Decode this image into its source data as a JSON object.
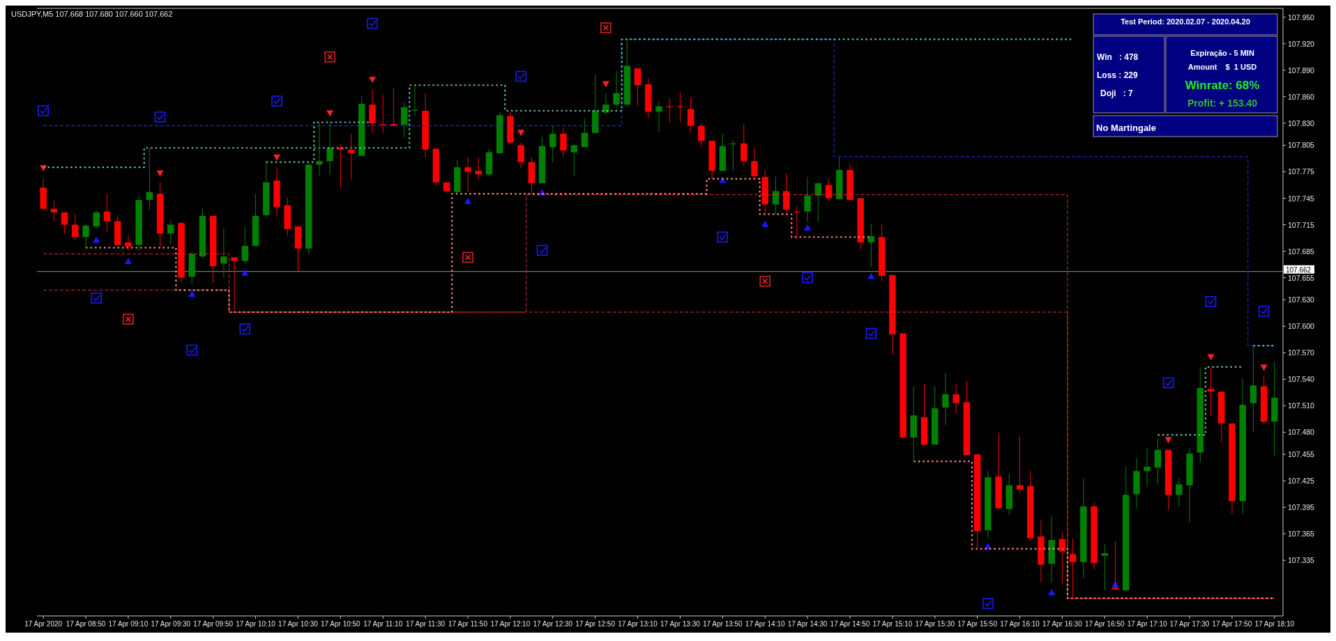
{
  "chart_data": {
    "type": "candlestick",
    "title": "USDJPY,M5  107.668 107.680 107.660 107.662",
    "x": [
      "2020-04-17T08:30",
      "2020-04-17T08:35",
      "2020-04-17T08:40",
      "2020-04-17T08:45",
      "2020-04-17T08:50",
      "2020-04-17T08:55",
      "2020-04-17T09:00",
      "2020-04-17T09:05",
      "2020-04-17T09:10",
      "2020-04-17T09:15",
      "2020-04-17T09:20",
      "2020-04-17T09:25",
      "2020-04-17T09:30",
      "2020-04-17T09:35",
      "2020-04-17T09:40",
      "2020-04-17T09:45",
      "2020-04-17T09:50",
      "2020-04-17T09:55",
      "2020-04-17T10:00",
      "2020-04-17T10:05",
      "2020-04-17T10:10",
      "2020-04-17T10:15",
      "2020-04-17T10:20",
      "2020-04-17T10:25",
      "2020-04-17T10:30",
      "2020-04-17T10:35",
      "2020-04-17T10:40",
      "2020-04-17T10:45",
      "2020-04-17T10:50",
      "2020-04-17T10:55",
      "2020-04-17T11:00",
      "2020-04-17T11:05",
      "2020-04-17T11:10",
      "2020-04-17T11:15",
      "2020-04-17T11:20",
      "2020-04-17T11:25",
      "2020-04-17T11:30",
      "2020-04-17T11:35",
      "2020-04-17T11:40",
      "2020-04-17T11:45",
      "2020-04-17T11:50",
      "2020-04-17T11:55",
      "2020-04-17T12:00",
      "2020-04-17T12:05",
      "2020-04-17T12:10",
      "2020-04-17T12:15",
      "2020-04-17T12:20",
      "2020-04-17T12:25",
      "2020-04-17T12:30",
      "2020-04-17T12:35",
      "2020-04-17T12:40",
      "2020-04-17T12:45",
      "2020-04-17T12:50",
      "2020-04-17T12:55",
      "2020-04-17T13:00",
      "2020-04-17T13:05",
      "2020-04-17T13:10",
      "2020-04-17T13:15",
      "2020-04-17T13:20",
      "2020-04-17T13:25",
      "2020-04-17T13:30",
      "2020-04-17T13:35",
      "2020-04-17T13:40",
      "2020-04-17T13:45",
      "2020-04-17T13:50",
      "2020-04-17T13:55",
      "2020-04-17T14:00",
      "2020-04-17T14:05",
      "2020-04-17T14:10",
      "2020-04-17T14:15",
      "2020-04-17T14:20",
      "2020-04-17T14:25",
      "2020-04-17T14:30",
      "2020-04-17T14:35",
      "2020-04-17T14:40",
      "2020-04-17T14:45",
      "2020-04-17T14:50",
      "2020-04-17T14:55",
      "2020-04-17T15:00",
      "2020-04-17T15:05",
      "2020-04-17T15:10",
      "2020-04-17T15:15",
      "2020-04-17T15:20",
      "2020-04-17T15:25",
      "2020-04-17T15:30",
      "2020-04-17T15:35",
      "2020-04-17T15:40",
      "2020-04-17T15:45",
      "2020-04-17T15:50",
      "2020-04-17T15:55",
      "2020-04-17T16:00",
      "2020-04-17T16:05",
      "2020-04-17T16:10",
      "2020-04-17T16:15",
      "2020-04-17T16:20",
      "2020-04-17T16:25",
      "2020-04-17T16:30",
      "2020-04-17T16:35",
      "2020-04-17T16:40",
      "2020-04-17T16:45",
      "2020-04-17T16:50",
      "2020-04-17T16:55",
      "2020-04-17T17:00",
      "2020-04-17T17:05",
      "2020-04-17T17:10",
      "2020-04-17T17:15",
      "2020-04-17T17:20",
      "2020-04-17T17:25",
      "2020-04-17T17:30",
      "2020-04-17T17:35",
      "2020-04-17T17:40",
      "2020-04-17T17:45",
      "2020-04-17T17:50",
      "2020-04-17T17:55",
      "2020-04-17T18:00",
      "2020-04-17T18:05",
      "2020-04-17T18:10"
    ],
    "ohlc": [
      [
        107.757,
        107.768,
        107.732,
        107.733
      ],
      [
        107.733,
        107.742,
        107.719,
        107.729
      ],
      [
        107.729,
        107.729,
        107.705,
        107.715
      ],
      [
        107.715,
        107.727,
        107.698,
        107.701
      ],
      [
        107.701,
        107.716,
        107.689,
        107.714
      ],
      [
        107.713,
        107.731,
        107.711,
        107.729
      ],
      [
        107.73,
        107.75,
        107.707,
        107.719
      ],
      [
        107.719,
        107.726,
        107.691,
        107.692
      ],
      [
        107.695,
        107.703,
        107.686,
        107.69
      ],
      [
        107.692,
        107.749,
        107.685,
        107.743
      ],
      [
        107.743,
        107.802,
        107.732,
        107.752
      ],
      [
        107.75,
        107.763,
        107.689,
        107.705
      ],
      [
        107.705,
        107.72,
        107.693,
        107.715
      ],
      [
        107.717,
        107.718,
        107.65,
        107.655
      ],
      [
        107.656,
        107.684,
        107.648,
        107.682
      ],
      [
        107.679,
        107.733,
        107.677,
        107.725
      ],
      [
        107.725,
        107.725,
        107.649,
        107.668
      ],
      [
        107.671,
        107.711,
        107.655,
        107.679
      ],
      [
        107.678,
        107.678,
        107.616,
        107.674
      ],
      [
        107.674,
        107.713,
        107.671,
        107.691
      ],
      [
        107.691,
        107.75,
        107.691,
        107.725
      ],
      [
        107.726,
        107.787,
        107.724,
        107.763
      ],
      [
        107.765,
        107.78,
        107.725,
        107.735
      ],
      [
        107.737,
        107.746,
        107.702,
        107.71
      ],
      [
        107.713,
        107.713,
        107.661,
        107.688
      ],
      [
        107.688,
        107.786,
        107.682,
        107.783
      ],
      [
        107.783,
        107.831,
        107.77,
        107.787
      ],
      [
        107.787,
        107.831,
        107.772,
        107.802
      ],
      [
        107.802,
        107.806,
        107.757,
        107.8
      ],
      [
        107.8,
        107.818,
        107.766,
        107.796
      ],
      [
        107.793,
        107.861,
        107.793,
        107.852
      ],
      [
        107.851,
        107.868,
        107.819,
        107.83
      ],
      [
        107.829,
        107.862,
        107.819,
        107.828
      ],
      [
        107.829,
        107.87,
        107.827,
        107.827
      ],
      [
        107.828,
        107.854,
        107.814,
        107.848
      ],
      [
        107.844,
        107.872,
        107.838,
        107.845
      ],
      [
        107.844,
        107.864,
        107.791,
        107.8
      ],
      [
        107.801,
        107.801,
        107.759,
        107.763
      ],
      [
        107.763,
        107.763,
        107.751,
        107.753
      ],
      [
        107.752,
        107.788,
        107.75,
        107.78
      ],
      [
        107.78,
        107.791,
        107.752,
        107.775
      ],
      [
        107.776,
        107.791,
        107.766,
        107.772
      ],
      [
        107.772,
        107.801,
        107.77,
        107.797
      ],
      [
        107.796,
        107.843,
        107.796,
        107.839
      ],
      [
        107.838,
        107.843,
        107.808,
        107.808
      ],
      [
        107.805,
        107.808,
        107.779,
        107.786
      ],
      [
        107.786,
        107.791,
        107.75,
        107.762
      ],
      [
        107.762,
        107.814,
        107.762,
        107.804
      ],
      [
        107.803,
        107.827,
        107.786,
        107.818
      ],
      [
        107.818,
        107.825,
        107.792,
        107.799
      ],
      [
        107.797,
        107.806,
        107.77,
        107.805
      ],
      [
        107.803,
        107.835,
        107.803,
        107.819
      ],
      [
        107.819,
        107.885,
        107.819,
        107.844
      ],
      [
        107.842,
        107.864,
        107.839,
        107.851
      ],
      [
        107.851,
        107.889,
        107.849,
        107.864
      ],
      [
        107.851,
        107.924,
        107.849,
        107.895
      ],
      [
        107.892,
        107.892,
        107.85,
        107.873
      ],
      [
        107.874,
        107.881,
        107.836,
        107.843
      ],
      [
        107.843,
        107.855,
        107.82,
        107.849
      ],
      [
        107.849,
        107.858,
        107.831,
        107.848
      ],
      [
        107.849,
        107.865,
        107.832,
        107.848
      ],
      [
        107.846,
        107.859,
        107.82,
        107.827
      ],
      [
        107.827,
        107.83,
        107.804,
        107.81
      ],
      [
        107.81,
        107.81,
        107.767,
        107.776
      ],
      [
        107.776,
        107.818,
        107.776,
        107.804
      ],
      [
        107.806,
        107.811,
        107.776,
        107.807
      ],
      [
        107.807,
        107.829,
        107.782,
        107.787
      ],
      [
        107.787,
        107.802,
        107.767,
        107.77
      ],
      [
        107.769,
        107.777,
        107.726,
        107.738
      ],
      [
        107.738,
        107.77,
        107.727,
        107.753
      ],
      [
        107.753,
        107.773,
        107.726,
        107.732
      ],
      [
        107.73,
        107.736,
        107.7,
        107.729
      ],
      [
        107.73,
        107.769,
        107.718,
        107.748
      ],
      [
        107.748,
        107.762,
        107.718,
        107.762
      ],
      [
        107.76,
        107.767,
        107.742,
        107.745
      ],
      [
        107.744,
        107.792,
        107.744,
        107.777
      ],
      [
        107.777,
        107.783,
        107.741,
        107.743
      ],
      [
        107.745,
        107.745,
        107.687,
        107.695
      ],
      [
        107.695,
        107.716,
        107.667,
        107.702
      ],
      [
        107.701,
        107.715,
        107.651,
        107.657
      ],
      [
        107.658,
        107.658,
        107.568,
        107.591
      ],
      [
        107.592,
        107.592,
        107.473,
        107.474
      ],
      [
        107.474,
        107.532,
        107.446,
        107.499
      ],
      [
        107.497,
        107.535,
        107.465,
        107.466
      ],
      [
        107.466,
        107.532,
        107.466,
        107.507
      ],
      [
        107.508,
        107.547,
        107.488,
        107.523
      ],
      [
        107.523,
        107.534,
        107.501,
        107.513
      ],
      [
        107.514,
        107.538,
        107.454,
        107.454
      ],
      [
        107.455,
        107.455,
        107.347,
        107.368
      ],
      [
        107.369,
        107.436,
        107.36,
        107.429
      ],
      [
        107.43,
        107.479,
        107.393,
        107.394
      ],
      [
        107.393,
        107.433,
        107.387,
        107.42
      ],
      [
        107.42,
        107.475,
        107.411,
        107.415
      ],
      [
        107.419,
        107.436,
        107.358,
        107.36
      ],
      [
        107.362,
        107.38,
        107.31,
        107.33
      ],
      [
        107.331,
        107.385,
        107.31,
        107.358
      ],
      [
        107.359,
        107.366,
        107.308,
        107.345
      ],
      [
        107.342,
        107.36,
        107.292,
        107.333
      ],
      [
        107.333,
        107.428,
        107.315,
        107.396
      ],
      [
        107.396,
        107.4,
        107.325,
        107.332
      ],
      [
        107.34,
        107.353,
        107.301,
        107.343
      ],
      [
        107.304,
        107.356,
        107.301,
        107.302
      ],
      [
        107.301,
        107.442,
        107.301,
        107.409
      ],
      [
        107.41,
        107.451,
        107.394,
        107.436
      ],
      [
        107.436,
        107.462,
        107.419,
        107.441
      ],
      [
        107.44,
        107.473,
        107.421,
        107.46
      ],
      [
        107.46,
        107.46,
        107.392,
        107.409
      ],
      [
        107.409,
        107.428,
        107.396,
        107.421
      ],
      [
        107.42,
        107.462,
        107.378,
        107.456
      ],
      [
        107.457,
        107.553,
        107.446,
        107.53
      ],
      [
        107.529,
        107.553,
        107.498,
        107.526
      ],
      [
        107.526,
        107.526,
        107.469,
        107.49
      ],
      [
        107.49,
        107.49,
        107.388,
        107.402
      ],
      [
        107.402,
        107.541,
        107.388,
        107.511
      ],
      [
        107.513,
        107.578,
        107.48,
        107.533
      ],
      [
        107.532,
        107.544,
        107.489,
        107.492
      ],
      [
        107.492,
        107.56,
        107.453,
        107.519
      ]
    ],
    "colors": [
      "#ff0000",
      "#ff0000",
      "#ff0000",
      "#ff0000",
      "#008000",
      "#008000",
      "#ff0000",
      "#ff0000",
      "#ff0000",
      "#008000",
      "#008000",
      "#ff0000",
      "#008000",
      "#ff0000",
      "#008000",
      "#008000",
      "#ff0000",
      "#008000",
      "#ff0000",
      "#008000",
      "#008000",
      "#008000",
      "#ff0000",
      "#ff0000",
      "#ff0000",
      "#008000",
      "#008000",
      "#008000",
      "#ff0000",
      "#ff0000",
      "#008000",
      "#ff0000",
      "#ff0000",
      "#ff0000",
      "#008000",
      "#008000",
      "#ff0000",
      "#ff0000",
      "#ff0000",
      "#008000",
      "#ff0000",
      "#ff0000",
      "#008000",
      "#008000",
      "#ff0000",
      "#ff0000",
      "#ff0000",
      "#008000",
      "#008000",
      "#ff0000",
      "#008000",
      "#008000",
      "#008000",
      "#008000",
      "#008000",
      "#008000",
      "#ff0000",
      "#ff0000",
      "#008000",
      "#ff0000",
      "#ff0000",
      "#ff0000",
      "#ff0000",
      "#ff0000",
      "#008000",
      "#008000",
      "#ff0000",
      "#ff0000",
      "#ff0000",
      "#008000",
      "#ff0000",
      "#ff0000",
      "#008000",
      "#008000",
      "#ff0000",
      "#008000",
      "#ff0000",
      "#ff0000",
      "#008000",
      "#ff0000",
      "#ff0000",
      "#ff0000",
      "#008000",
      "#ff0000",
      "#008000",
      "#008000",
      "#ff0000",
      "#ff0000",
      "#ff0000",
      "#008000",
      "#ff0000",
      "#008000",
      "#ff0000",
      "#ff0000",
      "#ff0000",
      "#008000",
      "#ff0000",
      "#ff0000",
      "#008000",
      "#ff0000",
      "#008000",
      "#ff0000",
      "#008000",
      "#008000",
      "#008000",
      "#008000",
      "#ff0000",
      "#008000",
      "#008000",
      "#008000",
      "#ff0000",
      "#ff0000",
      "#ff0000",
      "#008000",
      "#008000",
      "#ff0000",
      "#008000"
    ],
    "series": [
      {
        "type": "step",
        "color": "#2233ff",
        "line_style": "dashed",
        "values": [
          107.827,
          107.827,
          107.827,
          107.827,
          107.827,
          107.827,
          107.827,
          107.827,
          107.827,
          107.827,
          107.827,
          107.827,
          107.827,
          107.827,
          107.827,
          107.827,
          107.827,
          107.827,
          107.827,
          107.827,
          107.827,
          107.827,
          107.827,
          107.827,
          107.827,
          107.827,
          107.827,
          107.827,
          107.827,
          107.827,
          107.827,
          107.827,
          107.827,
          107.827,
          107.827,
          107.827,
          107.827,
          107.827,
          107.827,
          107.827,
          107.827,
          107.827,
          107.827,
          107.827,
          107.827,
          107.827,
          107.827,
          107.827,
          107.827,
          107.827,
          107.827,
          107.827,
          107.827,
          107.827,
          107.827,
          107.925,
          107.925,
          107.925,
          107.925,
          107.925,
          107.925,
          107.925,
          107.925,
          107.925,
          107.925,
          107.925,
          107.925,
          107.925,
          107.925,
          107.925,
          107.925,
          107.925,
          107.925,
          107.925,
          107.925,
          107.792,
          107.792,
          107.792,
          107.792,
          107.792,
          107.792,
          107.792,
          107.792,
          107.792,
          107.792,
          107.792,
          107.792,
          107.792,
          107.792,
          107.792,
          107.792,
          107.792,
          107.792,
          107.792,
          107.792,
          107.792,
          107.792,
          107.792,
          107.792,
          107.792,
          107.792,
          107.792,
          107.792,
          107.792,
          107.792,
          107.792,
          107.792,
          107.792,
          107.792,
          107.792,
          107.792,
          107.792,
          107.792,
          107.792,
          107.578,
          107.578,
          107.578
        ]
      },
      {
        "type": "step",
        "color": "#66c2a5",
        "line_style": "dotted",
        "values": [
          107.78,
          107.78,
          107.78,
          107.78,
          107.78,
          107.78,
          107.78,
          107.78,
          107.78,
          107.78,
          107.802,
          107.802,
          107.802,
          107.802,
          107.802,
          107.802,
          107.802,
          107.802,
          107.802,
          107.802,
          107.802,
          107.802,
          107.802,
          107.802,
          107.802,
          107.802,
          107.802,
          107.802,
          107.802,
          107.802,
          107.802,
          107.802,
          107.802,
          107.802,
          107.802,
          107.873,
          107.873,
          107.873,
          107.873,
          107.873,
          107.873,
          107.873,
          107.873,
          107.873,
          107.844,
          107.844,
          107.844,
          107.844,
          107.844,
          107.844,
          107.844,
          107.844,
          107.844,
          107.844,
          107.844,
          107.925,
          107.925,
          107.925,
          107.925,
          107.925,
          107.925,
          107.925,
          107.925,
          107.925,
          107.925,
          107.925,
          107.925,
          107.925,
          107.925,
          107.925,
          107.925,
          107.925,
          107.925,
          107.925,
          107.925,
          107.925,
          107.925,
          107.925,
          107.925,
          107.925,
          107.925,
          107.925,
          107.925,
          107.925,
          107.925,
          107.925,
          107.925,
          107.925,
          107.925,
          107.925,
          107.925,
          107.925,
          107.925,
          107.925,
          107.925,
          107.925,
          107.925,
          107.925,
          null,
          null,
          null,
          null,
          null,
          null,
          null,
          null,
          null,
          null,
          null,
          null,
          null,
          null,
          null,
          null,
          107.578,
          107.578,
          107.578
        ]
      },
      {
        "type": "step",
        "color": "#66c2a5",
        "line_style": "dotted",
        "values": [
          null,
          null,
          null,
          null,
          null,
          null,
          null,
          null,
          null,
          null,
          null,
          null,
          null,
          null,
          null,
          null,
          null,
          null,
          null,
          null,
          null,
          107.786,
          107.786,
          107.786,
          107.786,
          107.786,
          107.831,
          107.831,
          107.831,
          107.831,
          107.831,
          107.831,
          null,
          null,
          null,
          null,
          null,
          null,
          null,
          null,
          null,
          null,
          null,
          null,
          null,
          null,
          null,
          null,
          null,
          null,
          null,
          null,
          null,
          null,
          null,
          null,
          null,
          null,
          null,
          null,
          null,
          null,
          null,
          null,
          null,
          null,
          null,
          null,
          null,
          null,
          null,
          null,
          null,
          null,
          null,
          null,
          null,
          null,
          null,
          null,
          null,
          null,
          null,
          null,
          null,
          null,
          null,
          null,
          null,
          null,
          null,
          null,
          null,
          null,
          null,
          null,
          null,
          null,
          null,
          null,
          null,
          null,
          null,
          null,
          null,
          107.477,
          107.477,
          107.477,
          107.477,
          107.477,
          107.554,
          107.554,
          107.554,
          107.554,
          null,
          null,
          null
        ]
      },
      {
        "type": "step",
        "color": "#e03030",
        "line_style": "dashed",
        "values": [
          107.682,
          107.682,
          107.682,
          107.682,
          107.682,
          107.682,
          107.682,
          107.682,
          107.682,
          107.682,
          107.682,
          107.682,
          107.682,
          107.682,
          107.682,
          107.682,
          107.682,
          107.682,
          107.616,
          107.616,
          107.616,
          107.616,
          107.616,
          107.616,
          107.616,
          107.616,
          107.616,
          107.616,
          107.616,
          107.616,
          107.616,
          107.616,
          107.616,
          107.616,
          107.616,
          107.616,
          107.616,
          107.616,
          107.616,
          107.616,
          107.616,
          107.616,
          107.616,
          107.616,
          107.616,
          107.616,
          107.749,
          107.749,
          107.749,
          107.749,
          107.749,
          107.749,
          107.749,
          107.749,
          107.749,
          107.749,
          107.749,
          107.749,
          107.749,
          107.749,
          107.749,
          107.749,
          107.749,
          107.749,
          107.749,
          107.749,
          107.749,
          107.749,
          107.749,
          107.749,
          107.749,
          107.749,
          107.749,
          107.749,
          107.749,
          107.749,
          107.749,
          107.749,
          107.749,
          107.749,
          107.749,
          107.749,
          107.749,
          107.749,
          107.749,
          107.749,
          107.749,
          107.749,
          107.749,
          107.749,
          107.749,
          107.749,
          107.749,
          107.749,
          107.749,
          107.749,
          107.749,
          107.292,
          107.292,
          107.292,
          107.292,
          107.292,
          107.292,
          107.292,
          107.292,
          107.292,
          107.292,
          107.292,
          107.292,
          107.292,
          107.292,
          107.292,
          107.292,
          107.292,
          107.292,
          107.292,
          107.292
        ]
      },
      {
        "type": "step",
        "color": "#e03030",
        "line_style": "dashed",
        "values": [
          107.641,
          107.641,
          107.641,
          107.641,
          107.641,
          107.641,
          107.641,
          107.641,
          107.641,
          107.641,
          107.641,
          107.641,
          107.641,
          107.641,
          107.641,
          107.641,
          107.641,
          107.641,
          107.616,
          107.616,
          107.616,
          107.616,
          107.616,
          107.616,
          107.616,
          107.616,
          107.616,
          107.616,
          107.616,
          107.616,
          107.616,
          107.616,
          107.616,
          107.616,
          107.616,
          107.616,
          107.616,
          107.616,
          107.616,
          107.616,
          107.616,
          107.616,
          107.616,
          107.616,
          107.616,
          107.616,
          107.616,
          107.616,
          107.616,
          107.616,
          107.616,
          107.616,
          107.616,
          107.616,
          107.616,
          107.616,
          107.616,
          107.616,
          107.616,
          107.616,
          107.616,
          107.616,
          107.616,
          107.616,
          107.616,
          107.616,
          107.616,
          107.616,
          107.616,
          107.616,
          107.616,
          107.616,
          107.616,
          107.616,
          107.616,
          107.616,
          107.616,
          107.616,
          107.616,
          107.616,
          107.616,
          107.616,
          107.616,
          107.616,
          107.616,
          107.616,
          107.616,
          107.616,
          107.616,
          107.616,
          107.616,
          107.616,
          107.616,
          107.616,
          107.616,
          107.616,
          107.616,
          107.292,
          107.292,
          107.292,
          107.292,
          107.292,
          107.292,
          107.292,
          107.292,
          107.292,
          107.292,
          107.292,
          107.292,
          107.292,
          107.292,
          107.292,
          107.292,
          107.292,
          107.292,
          107.292,
          107.292
        ]
      },
      {
        "type": "step",
        "color": "#ff9080",
        "line_style": "dotted",
        "values": [
          null,
          null,
          null,
          null,
          107.689,
          107.689,
          107.689,
          107.689,
          107.689,
          107.689,
          107.689,
          107.689,
          107.689,
          107.641,
          107.641,
          107.641,
          107.641,
          107.641,
          107.616,
          107.616,
          107.616,
          107.616,
          107.616,
          107.616,
          107.616,
          107.616,
          107.616,
          107.616,
          107.616,
          107.616,
          107.616,
          107.616,
          107.616,
          107.616,
          107.616,
          107.616,
          107.616,
          107.616,
          107.616,
          107.75,
          107.75,
          107.75,
          107.75,
          107.75,
          107.75,
          107.75,
          107.75,
          107.75,
          107.75,
          107.75,
          107.75,
          107.75,
          107.75,
          107.75,
          107.75,
          107.75,
          107.75,
          107.75,
          107.75,
          107.75,
          107.75,
          107.75,
          107.75,
          107.767,
          107.767,
          107.767,
          107.767,
          107.767,
          107.727,
          107.727,
          107.727,
          107.701,
          107.701,
          107.701,
          107.701,
          107.701,
          107.701,
          107.701,
          107.701,
          null,
          null,
          null,
          107.447,
          107.447,
          107.447,
          107.447,
          107.447,
          107.447,
          107.348,
          107.348,
          107.348,
          107.348,
          107.348,
          107.348,
          107.348,
          107.348,
          107.348,
          107.292,
          107.292,
          107.292,
          107.292,
          107.292,
          107.292,
          107.292,
          107.292,
          107.292,
          107.292,
          107.292,
          107.292,
          107.292,
          107.292,
          107.292,
          107.292,
          107.292,
          107.292,
          107.292,
          107.292
        ]
      },
      {
        "type": "scatter",
        "color": "#1a1aff",
        "marker": "triangle",
        "x": [
          "2020-04-17T08:55",
          "2020-04-17T09:10",
          "2020-04-17T09:40",
          "2020-04-17T10:05",
          "2020-04-17T11:50",
          "2020-04-17T12:25",
          "2020-04-17T13:50",
          "2020-04-17T14:10",
          "2020-04-17T14:30",
          "2020-04-17T15:00",
          "2020-04-17T15:55",
          "2020-04-17T16:25",
          "2020-04-17T16:55"
        ],
        "values": [
          107.698,
          107.674,
          107.637,
          107.661,
          107.742,
          107.752,
          107.766,
          107.716,
          107.712,
          107.657,
          107.351,
          107.299,
          107.308
        ]
      },
      {
        "type": "scatter",
        "color": "#ff2020",
        "marker": "triangle",
        "x": [
          "2020-04-17T08:30",
          "2020-04-17T09:25",
          "2020-04-17T10:20",
          "2020-04-17T10:45",
          "2020-04-17T11:05",
          "2020-04-17T12:15",
          "2020-04-17T12:55",
          "2020-04-17T17:20",
          "2020-04-17T17:40",
          "2020-04-17T18:05"
        ],
        "values": [
          107.779,
          107.773,
          107.791,
          107.841,
          107.879,
          107.819,
          107.874,
          107.471,
          107.565,
          107.553
        ]
      },
      {
        "type": "scatter",
        "color": "#1a1aff",
        "marker": "square",
        "x": [
          "2020-04-17T08:30",
          "2020-04-17T08:55",
          "2020-04-17T09:25",
          "2020-04-17T09:40",
          "2020-04-17T10:05",
          "2020-04-17T10:20",
          "2020-04-17T11:05",
          "2020-04-17T12:15",
          "2020-04-17T12:25",
          "2020-04-17T13:50",
          "2020-04-17T14:30",
          "2020-04-17T15:00",
          "2020-04-17T15:55",
          "2020-04-17T17:20",
          "2020-04-17T17:40",
          "2020-04-17T18:05"
        ],
        "values": [
          107.844,
          107.632,
          107.837,
          107.573,
          107.597,
          107.855,
          107.943,
          107.883,
          107.686,
          107.701,
          107.655,
          107.592,
          107.286,
          107.536,
          107.628,
          107.617
        ]
      },
      {
        "type": "scatter",
        "color": "#e02020",
        "marker": "cross",
        "x": [
          "2020-04-17T09:10",
          "2020-04-17T10:45",
          "2020-04-17T11:50",
          "2020-04-17T12:55",
          "2020-04-17T14:10"
        ],
        "values": [
          107.608,
          107.905,
          107.678,
          107.938,
          107.651
        ]
      }
    ],
    "xlim": [
      "2020-04-17T08:27",
      "2020-04-17T18:14"
    ],
    "xticks": [
      {
        "value": "2020-04-17T08:30",
        "label": "17 Apr 2020"
      },
      {
        "value": "2020-04-17T08:50",
        "label": "17 Apr 08:50"
      },
      {
        "value": "2020-04-17T09:10",
        "label": "17 Apr 09:10"
      },
      {
        "value": "2020-04-17T09:30",
        "label": "17 Apr 09:30"
      },
      {
        "value": "2020-04-17T09:50",
        "label": "17 Apr 09:50"
      },
      {
        "value": "2020-04-17T10:10",
        "label": "17 Apr 10:10"
      },
      {
        "value": "2020-04-17T10:30",
        "label": "17 Apr 10:30"
      },
      {
        "value": "2020-04-17T10:50",
        "label": "17 Apr 10:50"
      },
      {
        "value": "2020-04-17T11:10",
        "label": "17 Apr 11:10"
      },
      {
        "value": "2020-04-17T11:30",
        "label": "17 Apr 11:30"
      },
      {
        "value": "2020-04-17T11:50",
        "label": "17 Apr 11:50"
      },
      {
        "value": "2020-04-17T12:10",
        "label": "17 Apr 12:10"
      },
      {
        "value": "2020-04-17T12:30",
        "label": "17 Apr 12:30"
      },
      {
        "value": "2020-04-17T12:50",
        "label": "17 Apr 12:50"
      },
      {
        "value": "2020-04-17T13:10",
        "label": "17 Apr 13:10"
      },
      {
        "value": "2020-04-17T13:30",
        "label": "17 Apr 13:30"
      },
      {
        "value": "2020-04-17T13:50",
        "label": "17 Apr 13:50"
      },
      {
        "value": "2020-04-17T14:10",
        "label": "17 Apr 14:10"
      },
      {
        "value": "2020-04-17T14:30",
        "label": "17 Apr 14:30"
      },
      {
        "value": "2020-04-17T14:50",
        "label": "17 Apr 14:50"
      },
      {
        "value": "2020-04-17T15:10",
        "label": "17 Apr 15:10"
      },
      {
        "value": "2020-04-17T15:30",
        "label": "17 Apr 15:30"
      },
      {
        "value": "2020-04-17T15:50",
        "label": "17 Apr 15:50"
      },
      {
        "value": "2020-04-17T16:10",
        "label": "17 Apr 16:10"
      },
      {
        "value": "2020-04-17T16:30",
        "label": "17 Apr 16:30"
      },
      {
        "value": "2020-04-17T16:50",
        "label": "17 Apr 16:50"
      },
      {
        "value": "2020-04-17T17:10",
        "label": "17 Apr 17:10"
      },
      {
        "value": "2020-04-17T17:30",
        "label": "17 Apr 17:30"
      },
      {
        "value": "2020-04-17T17:50",
        "label": "17 Apr 17:50"
      },
      {
        "value": "2020-04-17T18:10",
        "label": "17 Apr 18:10"
      }
    ],
    "ylim": [
      107.272,
      107.96
    ],
    "yticks": [
      {
        "value": 107.95,
        "label": "107.950"
      },
      {
        "value": 107.92,
        "label": "107.920"
      },
      {
        "value": 107.89,
        "label": "107.890"
      },
      {
        "value": 107.86,
        "label": "107.860"
      },
      {
        "value": 107.83,
        "label": "107.830"
      },
      {
        "value": 107.805,
        "label": "107.805"
      },
      {
        "value": 107.775,
        "label": "107.775"
      },
      {
        "value": 107.745,
        "label": "107.745"
      },
      {
        "value": 107.715,
        "label": "107.715"
      },
      {
        "value": 107.685,
        "label": "107.685"
      },
      {
        "value": 107.655,
        "label": "107.655"
      },
      {
        "value": 107.63,
        "label": "107.630"
      },
      {
        "value": 107.6,
        "label": "107.600"
      },
      {
        "value": 107.57,
        "label": "107.570"
      },
      {
        "value": 107.54,
        "label": "107.540"
      },
      {
        "value": 107.51,
        "label": "107.510"
      },
      {
        "value": 107.48,
        "label": "107.480"
      },
      {
        "value": 107.455,
        "label": "107.455"
      },
      {
        "value": 107.425,
        "label": "107.425"
      },
      {
        "value": 107.395,
        "label": "107.395"
      },
      {
        "value": 107.365,
        "label": "107.365"
      },
      {
        "value": 107.335,
        "label": "107.335"
      }
    ],
    "ref_lines": [
      {
        "axis": "y",
        "value": 107.662,
        "label": "107.662",
        "color": "#8a9a8a"
      }
    ],
    "annotations": [
      "Test Period: 2020.02.07 - 2020.04.20",
      "Win   : 478",
      "Loss : 229",
      "Doji   : 7",
      "Expiração - 5 MIN",
      "Amount    $  1 USD",
      "Winrate: 68%",
      "Profit: + 153.40",
      "No Martingale"
    ]
  }
}
